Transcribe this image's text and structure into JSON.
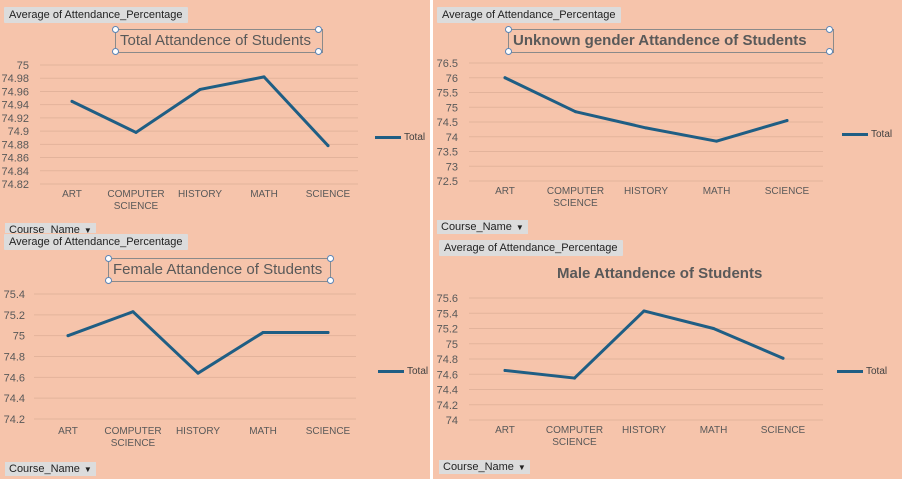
{
  "colors": {
    "background": "#f6c4ab",
    "line": "#1f5e84",
    "grid": "#e3b39b",
    "label": "#595959",
    "button": "#dcdcdc"
  },
  "charts": [
    {
      "field_tag": "Average of Attendance_Percentage",
      "axis_button": "Course_Name",
      "legend": "Total",
      "chart_data": {
        "type": "line",
        "title": "Total Attandence of Students",
        "categories": [
          "ART",
          "COMPUTER SCIENCE",
          "HISTORY",
          "MATH",
          "SCIENCE"
        ],
        "series": [
          {
            "name": "Total",
            "values": [
              74.945,
              74.898,
              74.963,
              74.982,
              74.878
            ]
          }
        ],
        "ylim": [
          74.82,
          75
        ],
        "yticks": [
          "75",
          "74.98",
          "74.96",
          "74.94",
          "74.92",
          "74.9",
          "74.88",
          "74.86",
          "74.84",
          "74.82"
        ],
        "xlabel": "",
        "ylabel": "",
        "grid": true,
        "legend_position": "right"
      }
    },
    {
      "field_tag": "Average of Attendance_Percentage",
      "axis_button": "Course_Name",
      "legend": "Total",
      "chart_data": {
        "type": "line",
        "title": "Unknown gender Attandence of Students",
        "categories": [
          "ART",
          "COMPUTER SCIENCE",
          "HISTORY",
          "MATH",
          "SCIENCE"
        ],
        "series": [
          {
            "name": "Total",
            "values": [
              76.0,
              74.85,
              74.3,
              73.85,
              74.55
            ]
          }
        ],
        "ylim": [
          72.5,
          76.5
        ],
        "yticks": [
          "76.5",
          "76",
          "75.5",
          "75",
          "74.5",
          "74",
          "73.5",
          "73",
          "72.5"
        ],
        "xlabel": "",
        "ylabel": "",
        "grid": true,
        "legend_position": "right"
      }
    },
    {
      "field_tag": "Average of Attendance_Percentage",
      "axis_button": "Course_Name",
      "legend": "Total",
      "chart_data": {
        "type": "line",
        "title": "Female Attandence of Students",
        "categories": [
          "ART",
          "COMPUTER SCIENCE",
          "HISTORY",
          "MATH",
          "SCIENCE"
        ],
        "series": [
          {
            "name": "Total",
            "values": [
              75.0,
              75.23,
              74.64,
              75.03,
              75.03
            ]
          }
        ],
        "ylim": [
          74.2,
          75.4
        ],
        "yticks": [
          "75.4",
          "75.2",
          "75",
          "74.8",
          "74.6",
          "74.4",
          "74.2"
        ],
        "xlabel": "",
        "ylabel": "",
        "grid": true,
        "legend_position": "right"
      }
    },
    {
      "field_tag": "Average of Attendance_Percentage",
      "axis_button": "Course_Name",
      "legend": "Total",
      "chart_data": {
        "type": "line",
        "title": "Male Attandence of Students",
        "categories": [
          "ART",
          "COMPUTER SCIENCE",
          "HISTORY",
          "MATH",
          "SCIENCE"
        ],
        "series": [
          {
            "name": "Total",
            "values": [
              74.65,
              74.55,
              75.43,
              75.2,
              74.81
            ]
          }
        ],
        "ylim": [
          74,
          75.6
        ],
        "yticks": [
          "75.6",
          "75.4",
          "75.2",
          "75",
          "74.8",
          "74.6",
          "74.4",
          "74.2",
          "74"
        ],
        "xlabel": "",
        "ylabel": "",
        "grid": true,
        "legend_position": "right"
      }
    }
  ]
}
